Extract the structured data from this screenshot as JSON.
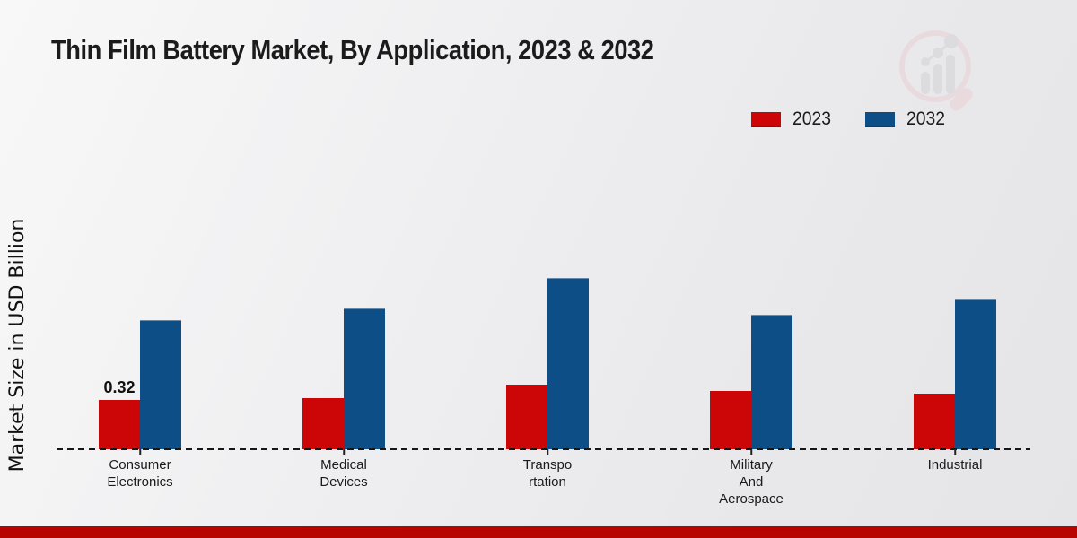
{
  "page": {
    "title": "Thin Film Battery Market, By Application, 2023 & 2032"
  },
  "watermark_icon": "magnifier-bar-chart-logo",
  "footer_color": "#b80400",
  "chart_data": {
    "type": "bar",
    "title": "Thin Film Battery Market, By Application, 2023 & 2032",
    "xlabel": "",
    "ylabel": "Market Size in USD Billion",
    "ylim": [
      0,
      1.75
    ],
    "grid": false,
    "baseline_style": "dashed",
    "legend_position": "top-right",
    "categories": [
      [
        "Consumer",
        "Electronics"
      ],
      [
        "Medical",
        "Devices"
      ],
      [
        "Transpo",
        "rtation"
      ],
      [
        "Military",
        "And",
        "Aerospace"
      ],
      [
        "Industrial"
      ]
    ],
    "series": [
      {
        "name": "2023",
        "color": "#cc0606",
        "values": [
          0.32,
          0.33,
          0.42,
          0.38,
          0.36
        ]
      },
      {
        "name": "2032",
        "color": "#0d4e87",
        "values": [
          0.84,
          0.91,
          1.11,
          0.87,
          0.97
        ]
      }
    ],
    "annotations": [
      {
        "series_index": 0,
        "category_index": 0,
        "text": "0.32"
      }
    ]
  }
}
